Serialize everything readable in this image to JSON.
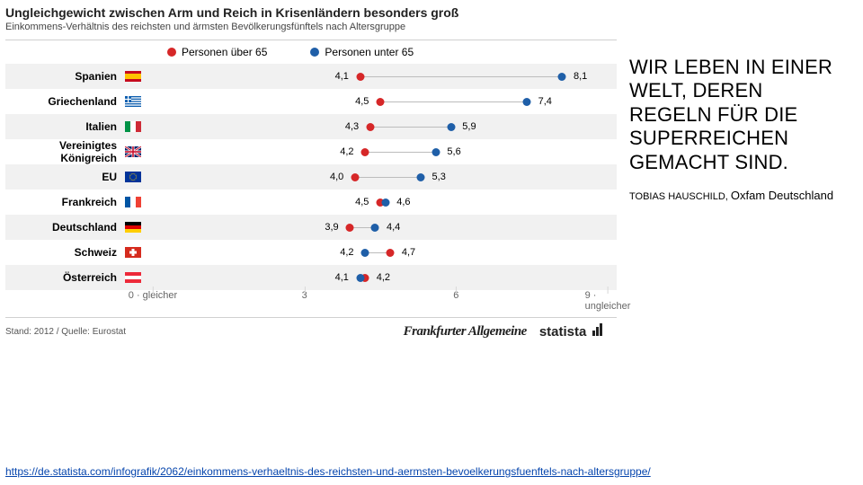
{
  "colors": {
    "over65": "#d62728",
    "under65": "#1f5fa8",
    "shade": "#f1f1f1",
    "connector": "#bcbcbc"
  },
  "chart": {
    "title": "Ungleichgewicht zwischen Arm und Reich in Krisenländern besonders groß",
    "subtitle": "Einkommens-Verhältnis des reichsten und ärmsten Bevölkerungsfünftels nach Altersgruppe",
    "legend_over65": "Personen über 65",
    "legend_under65": "Personen unter 65",
    "xmin": 0,
    "xmax": 9,
    "axis_ticks": [
      0,
      3,
      6,
      9
    ],
    "axis_left_label": "gleicher",
    "axis_right_label": "ungleicher",
    "rows": [
      {
        "label": "Spanien",
        "flag": "es",
        "over65": 4.1,
        "under65": 8.1
      },
      {
        "label": "Griechenland",
        "flag": "gr",
        "over65": 4.5,
        "under65": 7.4
      },
      {
        "label": "Italien",
        "flag": "it",
        "over65": 4.3,
        "under65": 5.9
      },
      {
        "label": "Vereinigtes Königreich",
        "flag": "uk",
        "over65": 4.2,
        "under65": 5.6
      },
      {
        "label": "EU",
        "flag": "eu",
        "over65": 4.0,
        "under65": 5.3
      },
      {
        "label": "Frankreich",
        "flag": "fr",
        "over65": 4.5,
        "under65": 4.6
      },
      {
        "label": "Deutschland",
        "flag": "de",
        "over65": 3.9,
        "under65": 4.4
      },
      {
        "label": "Schweiz",
        "flag": "ch",
        "over65": 4.7,
        "under65": 4.2
      },
      {
        "label": "Österreich",
        "flag": "at",
        "over65": 4.2,
        "under65": 4.1
      }
    ],
    "footer_source": "Stand: 2012 / Quelle: Eurostat",
    "brand1": "Frankfurter Allgemeine",
    "brand2": "statista"
  },
  "quote": {
    "text": "WIR LEBEN IN EINER WELT, DEREN REGELN FÜR DIE SUPERREICHEN GEMACHT SIND.",
    "author": "TOBIAS HAUSCHILD,",
    "org": "Oxfam Deutschland"
  },
  "link": "https://de.statista.com/infografik/2062/einkommens-verhaeltnis-des-reichsten-und-aermsten-bevoelkerungsfuenftels-nach-altersgruppe/"
}
